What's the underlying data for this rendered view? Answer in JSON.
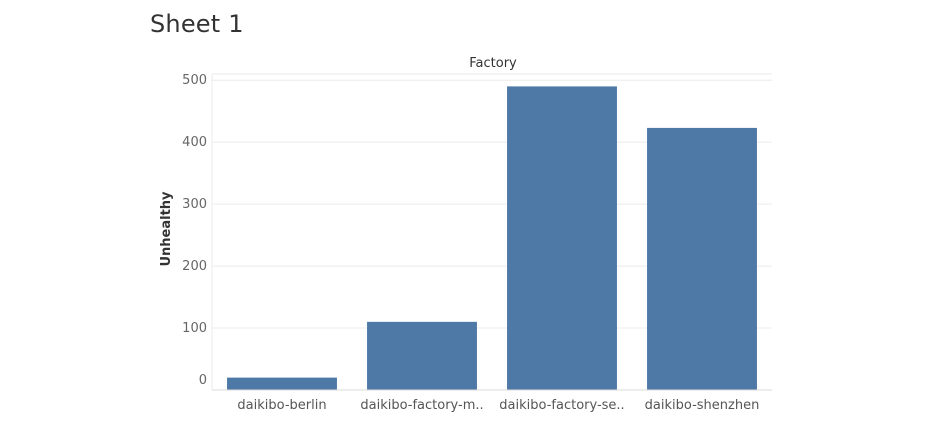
{
  "sheet": {
    "title": "Sheet 1"
  },
  "colors": {
    "bar": "#4E79A7",
    "grid": "#EBEBEB",
    "axis_text": "#666666"
  },
  "chart_data": {
    "type": "bar",
    "title": "",
    "column_header": "Factory",
    "xlabel": "",
    "ylabel": "Unhealthy",
    "categories": [
      "daikibo-berlin",
      "daikibo-factory-m..",
      "daikibo-factory-se..",
      "daikibo-shenzhen"
    ],
    "values": [
      20,
      110,
      490,
      423
    ],
    "ylim": [
      0,
      510
    ],
    "yticks": [
      0,
      100,
      200,
      300,
      400,
      500
    ],
    "grid": true,
    "legend": "none"
  }
}
